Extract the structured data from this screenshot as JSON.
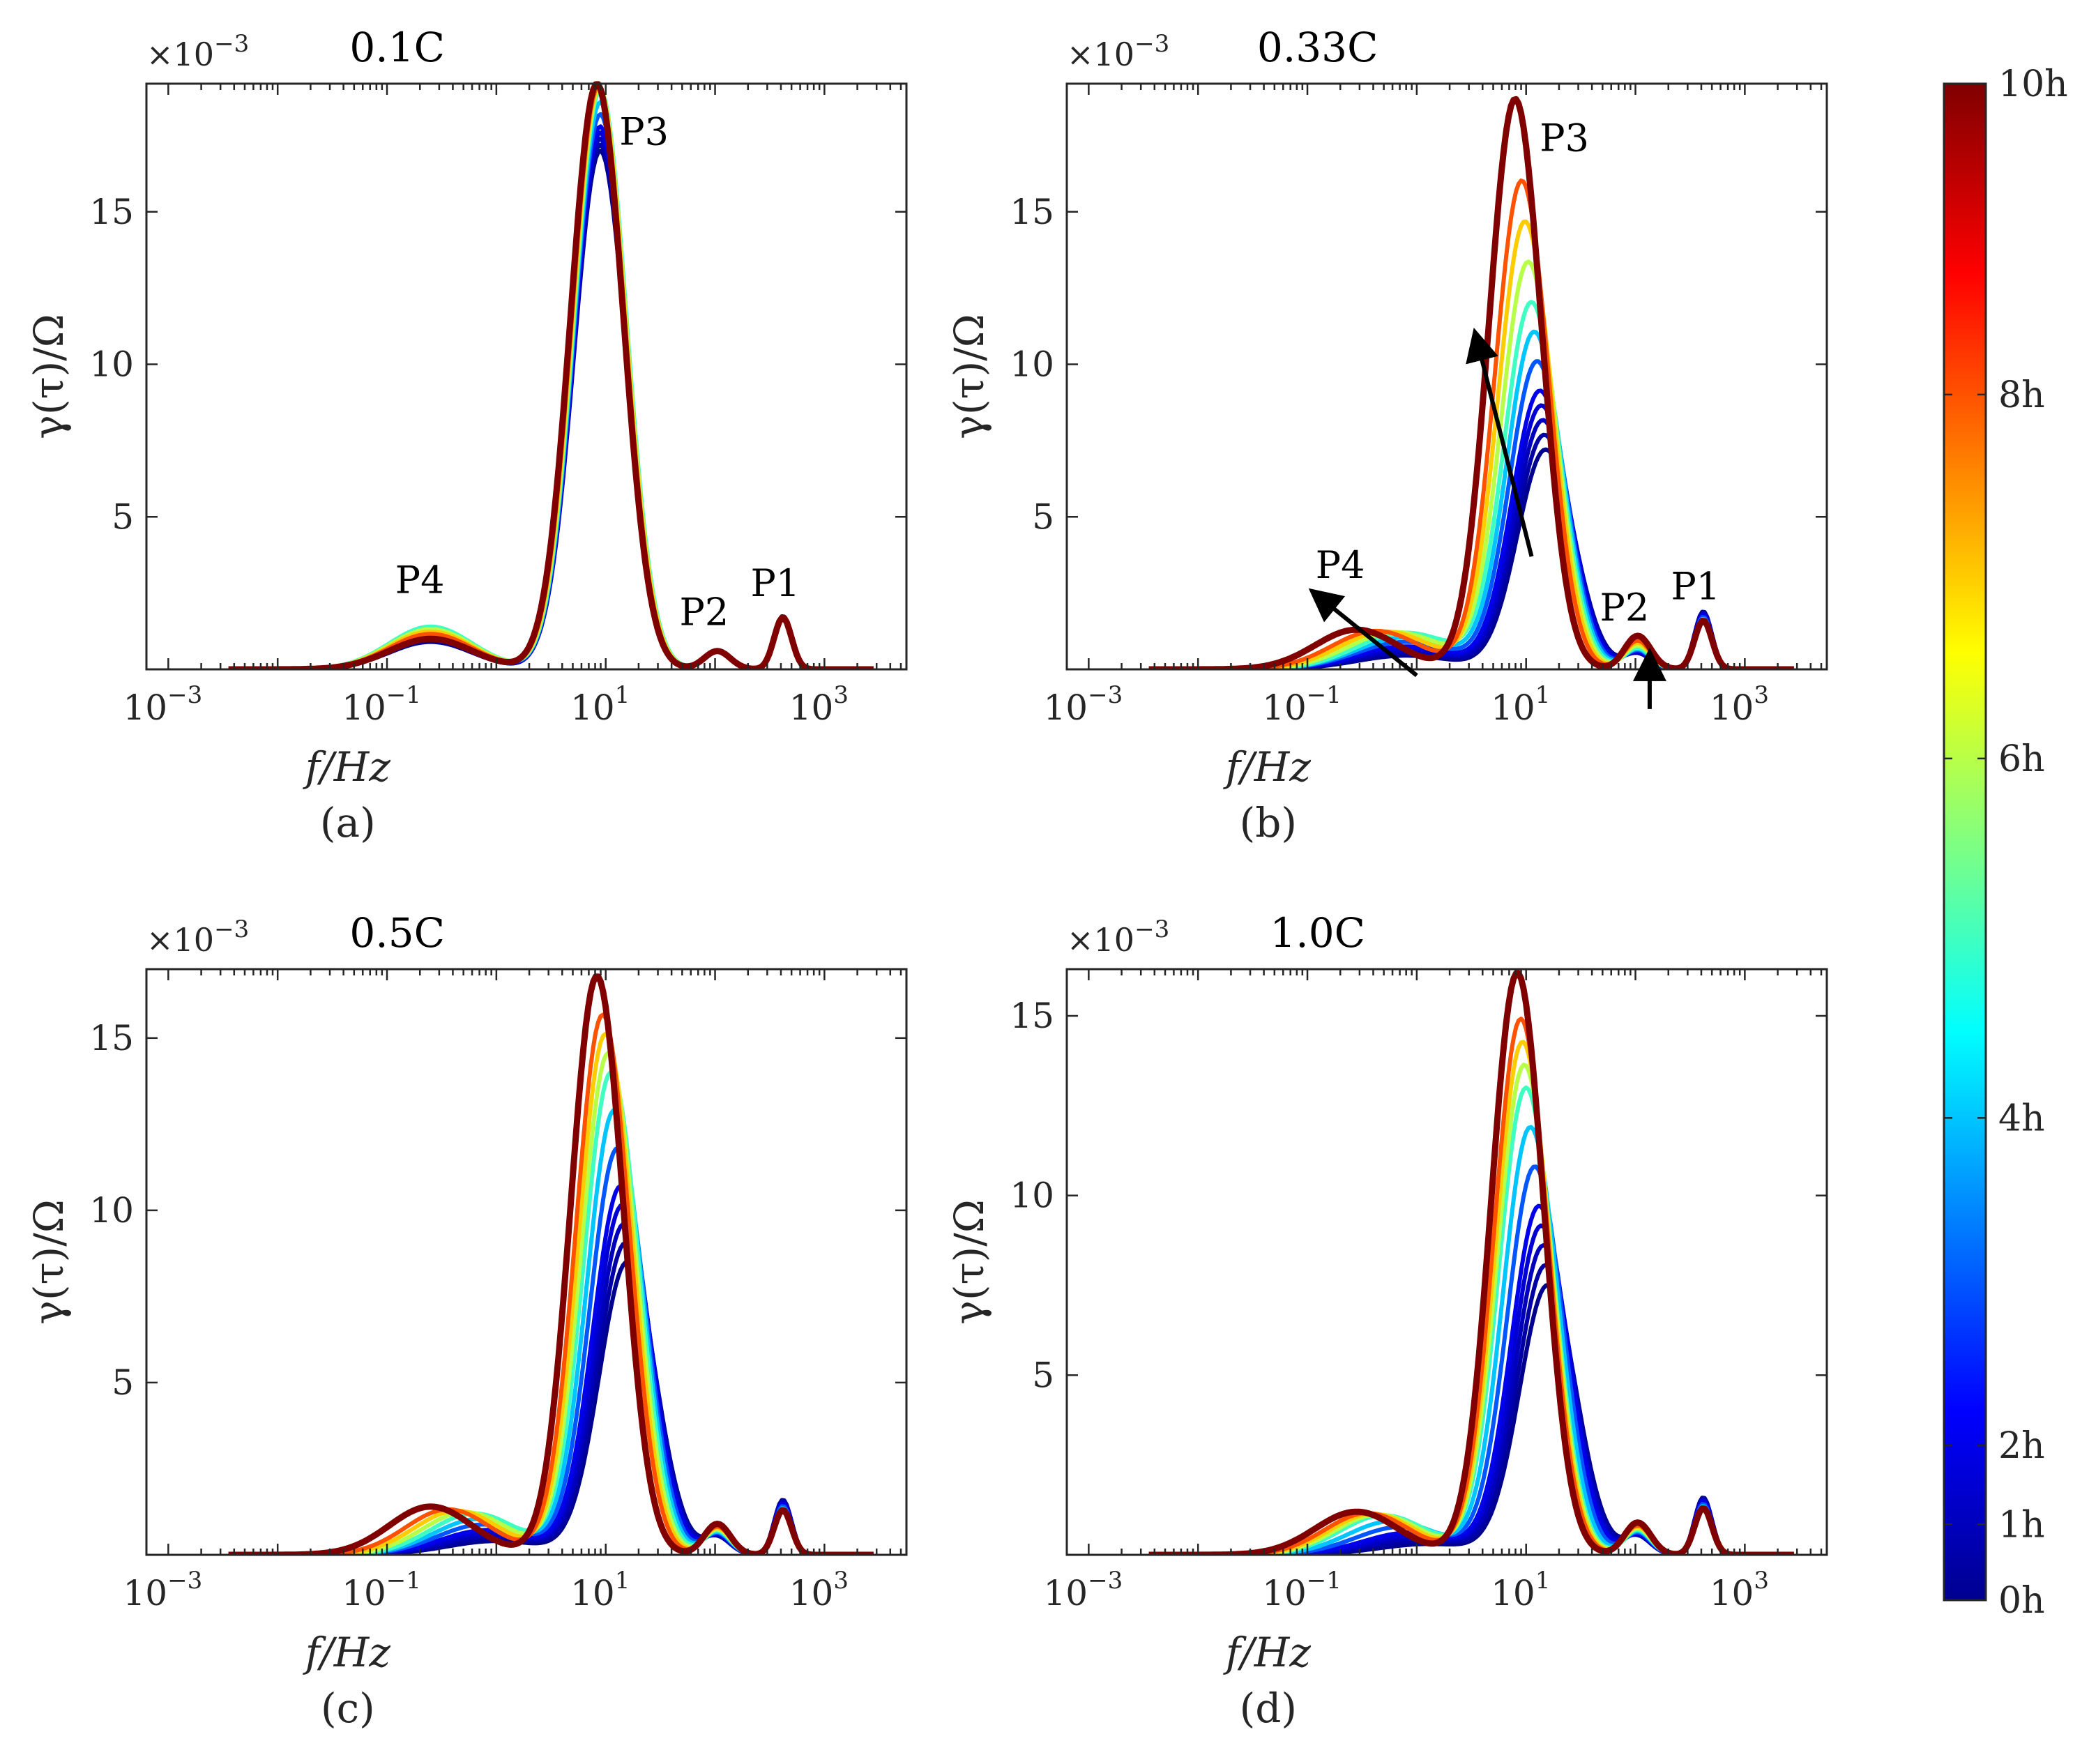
{
  "colormap": [
    "#00008f",
    "#0000ff",
    "#0080ff",
    "#00ffff",
    "#80ff80",
    "#ffff00",
    "#ff8000",
    "#ff0000",
    "#800000"
  ],
  "colorbar": {
    "labels": [
      "10h",
      "8h",
      "6h",
      "4h",
      "2h",
      "1h",
      "0h"
    ],
    "hours": [
      10,
      8,
      6,
      4,
      2,
      1,
      0
    ]
  },
  "chart_data": [
    {
      "type": "line",
      "title": "0.1C",
      "caption": "(a)",
      "xlabel": "f/Hz",
      "ylabel": "γ(τ)/Ω",
      "multiplier": "×10",
      "multiplier_exp": "−3",
      "xscale": "log",
      "xlim_log10": [
        -3.2,
        3.75
      ],
      "xticks": [
        {
          "base": "10",
          "exp": "−3",
          "log": -3
        },
        {
          "base": "10",
          "exp": "−1",
          "log": -1
        },
        {
          "base": "10",
          "exp": "1",
          "log": 1
        },
        {
          "base": "10",
          "exp": "3",
          "log": 3
        }
      ],
      "ylim": [
        0,
        19.2
      ],
      "yticks": [
        5,
        10,
        15
      ],
      "series_hours": [
        0,
        0.5,
        1,
        1.5,
        2,
        3,
        4,
        5,
        6,
        7,
        8,
        10
      ],
      "peaks_by_hour": [
        {
          "P4": [
            0.9,
            -0.6,
            0.38
          ],
          "P3": [
            17.0,
            0.95,
            0.24
          ],
          "P2": [
            0.6,
            2.02,
            0.12
          ],
          "P1": [
            1.75,
            2.62,
            0.08
          ]
        },
        {
          "P4": [
            1.4,
            -0.6,
            0.38
          ],
          "P3": [
            19.0,
            0.95,
            0.24
          ],
          "P2": [
            0.6,
            2.02,
            0.12
          ],
          "P1": [
            1.7,
            2.62,
            0.08
          ]
        },
        {
          "P4": [
            1.0,
            -0.6,
            0.38
          ],
          "P3": [
            19.2,
            0.92,
            0.24
          ],
          "P2": [
            0.6,
            2.02,
            0.12
          ],
          "P1": [
            1.7,
            2.62,
            0.08
          ]
        }
      ],
      "peak_labels": [
        {
          "text": "P4",
          "x_log": -0.7,
          "y": 2.5
        },
        {
          "text": "P3",
          "x_log": 1.35,
          "y": 17.2
        },
        {
          "text": "P2",
          "x_log": 1.9,
          "y": 1.45
        },
        {
          "text": "P1",
          "x_log": 2.55,
          "y": 2.4
        }
      ],
      "arrows": []
    },
    {
      "type": "line",
      "title": "0.33C",
      "caption": "(b)",
      "xlabel": "f/Hz",
      "ylabel": "γ(τ)/Ω",
      "multiplier": "×10",
      "multiplier_exp": "−3",
      "xscale": "log",
      "xlim_log10": [
        -3.2,
        3.75
      ],
      "xticks": [
        {
          "base": "10",
          "exp": "−3",
          "log": -3
        },
        {
          "base": "10",
          "exp": "−1",
          "log": -1
        },
        {
          "base": "10",
          "exp": "1",
          "log": 1
        },
        {
          "base": "10",
          "exp": "3",
          "log": 3
        }
      ],
      "ylim": [
        0,
        19.2
      ],
      "yticks": [
        5,
        10,
        15
      ],
      "series_hours": [
        0,
        0.5,
        1,
        1.5,
        2,
        3,
        4,
        5,
        6,
        7,
        8,
        10
      ],
      "peaks_by_hour": [
        {
          "P4": [
            0.45,
            -0.1,
            0.45
          ],
          "P3": [
            7.2,
            1.18,
            0.26
          ],
          "P2": [
            0.5,
            2.02,
            0.12
          ],
          "P1": [
            1.9,
            2.62,
            0.08
          ]
        },
        {
          "P4": [
            1.2,
            -0.1,
            0.45
          ],
          "P3": [
            12.0,
            1.05,
            0.25
          ],
          "P2": [
            0.7,
            2.02,
            0.12
          ],
          "P1": [
            1.6,
            2.62,
            0.08
          ]
        },
        {
          "P4": [
            1.3,
            -0.55,
            0.38
          ],
          "P3": [
            18.7,
            0.9,
            0.24
          ],
          "P2": [
            1.1,
            2.02,
            0.12
          ],
          "P1": [
            1.6,
            2.62,
            0.08
          ]
        }
      ],
      "peak_labels": [
        {
          "text": "P4",
          "x_log": -0.7,
          "y": 3.0
        },
        {
          "text": "P3",
          "x_log": 1.35,
          "y": 17.0
        },
        {
          "text": "P2",
          "x_log": 1.9,
          "y": 1.6
        },
        {
          "text": "P1",
          "x_log": 2.55,
          "y": 2.3
        }
      ],
      "arrows": [
        {
          "from_log": 1.05,
          "from_y": 3.7,
          "to_log": 0.55,
          "to_y": 10.8
        },
        {
          "from_log": 0.0,
          "from_y": -0.2,
          "to_log": -0.9,
          "to_y": 2.4
        },
        {
          "from_log": 2.13,
          "from_y": -1.3,
          "to_log": 2.13,
          "to_y": 0.3
        }
      ]
    },
    {
      "type": "line",
      "title": "0.5C",
      "caption": "(c)",
      "xlabel": "f/Hz",
      "ylabel": "γ(τ)/Ω",
      "multiplier": "×10",
      "multiplier_exp": "−3",
      "xscale": "log",
      "xlim_log10": [
        -3.2,
        3.75
      ],
      "xticks": [
        {
          "base": "10",
          "exp": "−3",
          "log": -3
        },
        {
          "base": "10",
          "exp": "−1",
          "log": -1
        },
        {
          "base": "10",
          "exp": "1",
          "log": 1
        },
        {
          "base": "10",
          "exp": "3",
          "log": 3
        }
      ],
      "ylim": [
        0,
        17.0
      ],
      "yticks": [
        5,
        10,
        15
      ],
      "series_hours": [
        0,
        0.5,
        1,
        1.5,
        2,
        3,
        4,
        5,
        6,
        7,
        8,
        10
      ],
      "peaks_by_hour": [
        {
          "P4": [
            0.4,
            0.0,
            0.45
          ],
          "P3": [
            8.5,
            1.2,
            0.26
          ],
          "P2": [
            0.5,
            2.02,
            0.12
          ],
          "P1": [
            1.6,
            2.62,
            0.08
          ]
        },
        {
          "P4": [
            1.2,
            -0.2,
            0.4
          ],
          "P3": [
            14.0,
            1.05,
            0.25
          ],
          "P2": [
            0.7,
            2.02,
            0.12
          ],
          "P1": [
            1.3,
            2.62,
            0.08
          ]
        },
        {
          "P4": [
            1.4,
            -0.6,
            0.38
          ],
          "P3": [
            16.8,
            0.92,
            0.24
          ],
          "P2": [
            0.9,
            2.02,
            0.12
          ],
          "P1": [
            1.3,
            2.62,
            0.08
          ]
        }
      ],
      "peak_labels": [],
      "arrows": []
    },
    {
      "type": "line",
      "title": "1.0C",
      "caption": "(d)",
      "xlabel": "f/Hz",
      "ylabel": "γ(τ)/Ω",
      "multiplier": "×10",
      "multiplier_exp": "−3",
      "xscale": "log",
      "xlim_log10": [
        -3.2,
        3.75
      ],
      "xticks": [
        {
          "base": "10",
          "exp": "−3",
          "log": -3
        },
        {
          "base": "10",
          "exp": "−1",
          "log": -1
        },
        {
          "base": "10",
          "exp": "1",
          "log": 1
        },
        {
          "base": "10",
          "exp": "3",
          "log": 3
        }
      ],
      "ylim": [
        0,
        16.3
      ],
      "yticks": [
        5,
        10,
        15
      ],
      "series_hours": [
        0,
        0.5,
        1,
        1.5,
        2,
        3,
        4,
        5,
        6,
        7,
        8,
        10
      ],
      "peaks_by_hour": [
        {
          "P4": [
            0.3,
            0.1,
            0.45
          ],
          "P3": [
            7.5,
            1.2,
            0.26
          ],
          "P2": [
            0.5,
            2.02,
            0.12
          ],
          "P1": [
            1.6,
            2.62,
            0.08
          ]
        },
        {
          "P4": [
            1.1,
            -0.3,
            0.4
          ],
          "P3": [
            13.0,
            1.0,
            0.25
          ],
          "P2": [
            0.7,
            2.02,
            0.12
          ],
          "P1": [
            1.3,
            2.62,
            0.08
          ]
        },
        {
          "P4": [
            1.2,
            -0.55,
            0.38
          ],
          "P3": [
            16.2,
            0.92,
            0.24
          ],
          "P2": [
            0.9,
            2.02,
            0.12
          ],
          "P1": [
            1.3,
            2.62,
            0.08
          ]
        }
      ],
      "peak_labels": [],
      "arrows": []
    }
  ]
}
